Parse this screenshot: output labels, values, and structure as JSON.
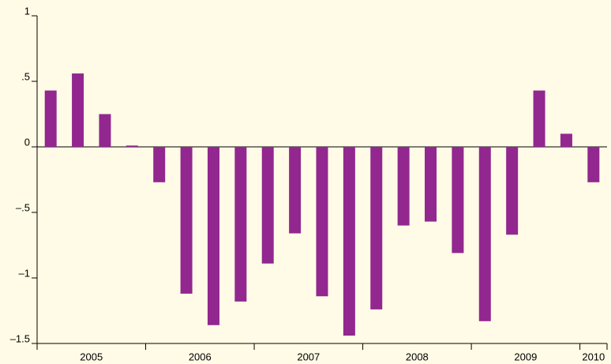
{
  "chart_data": {
    "type": "bar",
    "categories": [
      "2005",
      "2005",
      "2005",
      "2005",
      "2006",
      "2006",
      "2006",
      "2006",
      "2007",
      "2007",
      "2007",
      "2007",
      "2008",
      "2008",
      "2008",
      "2008",
      "2009",
      "2009",
      "2009",
      "2009",
      "2010"
    ],
    "values": [
      0.43,
      0.56,
      0.25,
      0.01,
      -0.27,
      -1.12,
      -1.36,
      -1.18,
      -0.89,
      -0.66,
      -1.14,
      -1.44,
      -1.24,
      -0.6,
      -0.57,
      -0.81,
      -1.33,
      -0.67,
      0.43,
      0.1,
      -0.27
    ],
    "color": "#92278f",
    "ylim": [
      -1.5,
      1
    ],
    "yticks": [
      1,
      {
        "value": 0.5,
        "label": ".5"
      },
      0,
      {
        "value": -0.5,
        "label": "–.5"
      },
      {
        "value": -1,
        "label": "–1"
      },
      {
        "value": -1.5,
        "label": "–1.5"
      }
    ]
  }
}
